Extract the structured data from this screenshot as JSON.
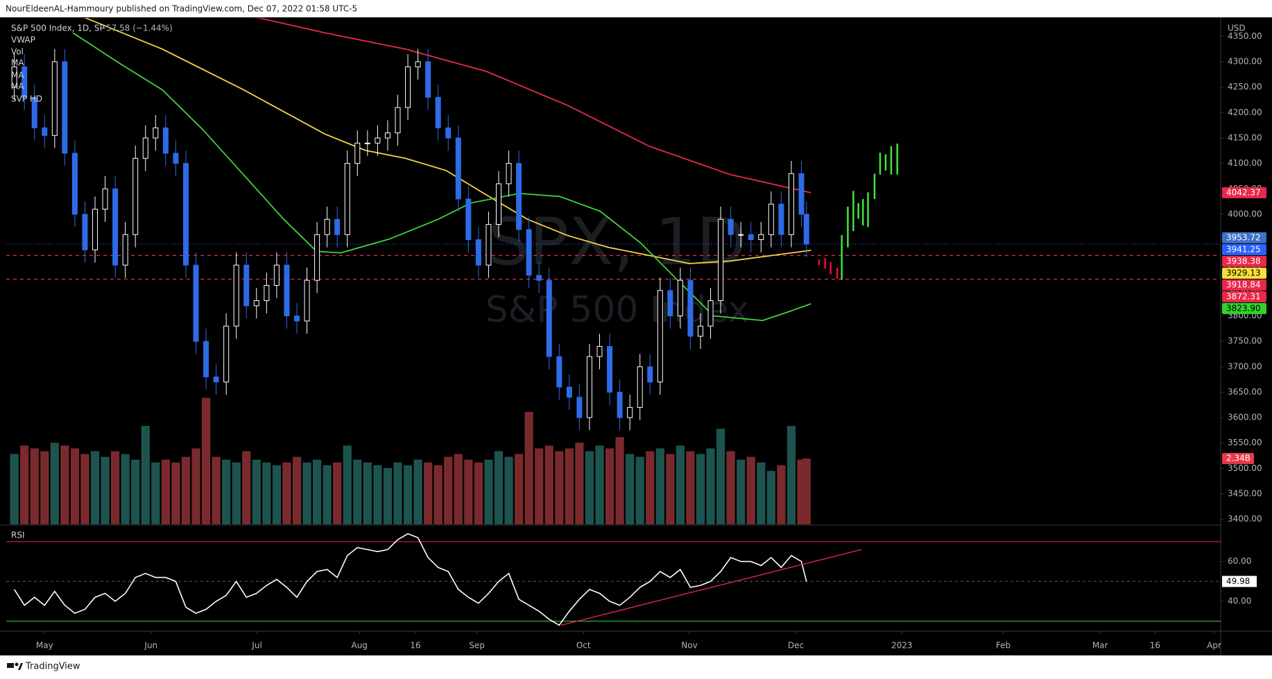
{
  "header": {
    "publisher": "NourEldeenAL-Hammoury published on TradingView.com, Dec 07, 2022 01:58 UTC-5",
    "footer": "TradingView"
  },
  "chart_data": {
    "type": "candlestick",
    "title": "S&P 500 Index, 1D, SP",
    "change": "−57.58 (−1.44%)",
    "change_color": "#2f7bf5",
    "indicators": [
      "VWAP",
      "Vol",
      "MA",
      "MA",
      "MA",
      "SVP HD"
    ],
    "watermark": [
      "SPX, 1D",
      "S&P 500 Index"
    ],
    "currency": "USD",
    "xlim": [
      -7.6,
      233.1
    ],
    "xticks": [
      {
        "value": 0,
        "label": "May"
      },
      {
        "value": 21.1,
        "label": "Jun"
      },
      {
        "value": 42.1,
        "label": "Jul"
      },
      {
        "value": 62.4,
        "label": "Aug"
      },
      {
        "value": 73.5,
        "label": "16"
      },
      {
        "value": 85.7,
        "label": "Sep"
      },
      {
        "value": 106.8,
        "label": "Oct"
      },
      {
        "value": 127.8,
        "label": "Nov"
      },
      {
        "value": 148.9,
        "label": "Dec"
      },
      {
        "value": 169.9,
        "label": "2023"
      },
      {
        "value": 190.0,
        "label": "Feb"
      },
      {
        "value": 209.2,
        "label": "Mar"
      },
      {
        "value": 220.1,
        "label": "16"
      },
      {
        "value": 231.8,
        "label": "Apr"
      }
    ],
    "ylim": [
      3390,
      4386
    ],
    "yticks": [
      {
        "value": 3400,
        "label": "3400.00"
      },
      {
        "value": 3450,
        "label": "3450.00"
      },
      {
        "value": 3500,
        "label": "3500.00"
      },
      {
        "value": 3550,
        "label": "3550.00"
      },
      {
        "value": 3600,
        "label": "3600.00"
      },
      {
        "value": 3650,
        "label": "3650.00"
      },
      {
        "value": 3700,
        "label": "3700.00"
      },
      {
        "value": 3750,
        "label": "3750.00"
      },
      {
        "value": 3800,
        "label": "3800.00"
      },
      {
        "value": 3850,
        "label": "3850.00"
      },
      {
        "value": 3900,
        "label": "3900.00"
      },
      {
        "value": 3950,
        "label": "3950.00"
      },
      {
        "value": 4000,
        "label": "4000.00"
      },
      {
        "value": 4050,
        "label": "4050.00"
      },
      {
        "value": 4100,
        "label": "4100.00"
      },
      {
        "value": 4150,
        "label": "4150.00"
      },
      {
        "value": 4200,
        "label": "4200.00"
      },
      {
        "value": 4250,
        "label": "4250.00"
      },
      {
        "value": 4300,
        "label": "4300.00"
      },
      {
        "value": 4350,
        "label": "4350.00"
      }
    ],
    "candles": {
      "up_color": "#ffffff",
      "down_color": "#2e6be6",
      "x": [
        -6,
        -4,
        -2,
        0,
        2,
        4,
        6,
        8,
        10,
        12,
        14,
        16,
        18,
        20,
        22,
        24,
        26,
        28,
        30,
        32,
        34,
        36,
        38,
        40,
        42,
        44,
        46,
        48,
        50,
        52,
        54,
        56,
        58,
        60,
        62,
        64,
        66,
        68,
        70,
        72,
        74,
        76,
        78,
        80,
        82,
        84,
        86,
        88,
        90,
        92,
        94,
        96,
        98,
        100,
        102,
        104,
        106,
        108,
        110,
        112,
        114,
        116,
        118,
        120,
        122,
        124,
        126,
        128,
        130,
        132,
        134,
        136,
        138,
        140,
        142,
        144,
        146,
        148,
        150,
        151
      ],
      "open": [
        4250,
        4290,
        4230,
        4170,
        4155,
        4300,
        4120,
        4000,
        3930,
        4010,
        4050,
        3900,
        3960,
        4110,
        4150,
        4170,
        4120,
        4100,
        3900,
        3750,
        3680,
        3670,
        3780,
        3900,
        3820,
        3830,
        3860,
        3900,
        3800,
        3790,
        3870,
        3960,
        3990,
        3960,
        4100,
        4140,
        4140,
        4150,
        4160,
        4210,
        4290,
        4300,
        4230,
        4170,
        4150,
        4030,
        3950,
        3900,
        3980,
        4060,
        4100,
        3970,
        3880,
        3870,
        3720,
        3660,
        3640,
        3600,
        3720,
        3740,
        3650,
        3600,
        3620,
        3700,
        3670,
        3850,
        3800,
        3870,
        3760,
        3780,
        3830,
        3990,
        3960,
        3960,
        3950,
        3960,
        4020,
        3960,
        4080,
        4000
      ],
      "high": [
        4315,
        4315,
        4255,
        4195,
        4325,
        4325,
        4145,
        4025,
        4035,
        4075,
        4075,
        3985,
        4135,
        4175,
        4195,
        4195,
        4145,
        4125,
        3925,
        3775,
        3705,
        3805,
        3925,
        3925,
        3855,
        3885,
        3925,
        3925,
        3825,
        3895,
        3985,
        4015,
        4015,
        4125,
        4165,
        4165,
        4175,
        4185,
        4235,
        4315,
        4325,
        4325,
        4255,
        4195,
        4175,
        4055,
        3975,
        4005,
        4085,
        4125,
        4125,
        3995,
        3905,
        3895,
        3745,
        3685,
        3665,
        3745,
        3765,
        3765,
        3675,
        3645,
        3725,
        3725,
        3875,
        3875,
        3895,
        3895,
        3805,
        3855,
        4015,
        4015,
        3985,
        3985,
        3985,
        4045,
        4045,
        4105,
        4105,
        4025
      ],
      "low": [
        4225,
        4205,
        4145,
        4130,
        4130,
        4095,
        3975,
        3905,
        3905,
        3985,
        3875,
        3875,
        3935,
        4085,
        4125,
        4095,
        4075,
        3875,
        3725,
        3655,
        3645,
        3645,
        3755,
        3795,
        3795,
        3805,
        3835,
        3775,
        3765,
        3765,
        3845,
        3935,
        3935,
        3935,
        4075,
        4115,
        4115,
        4125,
        4135,
        4185,
        4265,
        4205,
        4145,
        4125,
        4005,
        3925,
        3875,
        3875,
        3955,
        4035,
        3945,
        3855,
        3845,
        3695,
        3635,
        3615,
        3575,
        3575,
        3695,
        3625,
        3575,
        3575,
        3595,
        3645,
        3645,
        3775,
        3775,
        3735,
        3735,
        3755,
        3805,
        3935,
        3935,
        3925,
        3925,
        3935,
        3935,
        3935,
        3975,
        3916
      ],
      "close": [
        4290,
        4230,
        4170,
        4155,
        4300,
        4120,
        4000,
        3930,
        4010,
        4050,
        3900,
        3960,
        4110,
        4150,
        4170,
        4120,
        4100,
        3900,
        3750,
        3680,
        3670,
        3780,
        3900,
        3820,
        3830,
        3860,
        3900,
        3800,
        3790,
        3870,
        3960,
        3990,
        3960,
        4100,
        4140,
        4140,
        4150,
        4160,
        4210,
        4290,
        4300,
        4230,
        4170,
        4150,
        4030,
        3950,
        3900,
        3980,
        4060,
        4100,
        3970,
        3880,
        3870,
        3720,
        3660,
        3640,
        3600,
        3720,
        3740,
        3650,
        3600,
        3620,
        3700,
        3670,
        3850,
        3800,
        3870,
        3760,
        3780,
        3830,
        3990,
        3960,
        3960,
        3950,
        3960,
        4020,
        3960,
        4080,
        4000,
        3941.25
      ]
    },
    "volume": {
      "up_color": "#1d5450",
      "down_color": "#7a2a2d",
      "ylim": [
        0,
        18
      ],
      "last_label": "2.34B",
      "label_color": "#e8394a",
      "values": [
        2.5,
        2.8,
        2.7,
        2.6,
        2.9,
        2.8,
        2.7,
        2.5,
        2.6,
        2.4,
        2.6,
        2.5,
        2.3,
        3.5,
        2.2,
        2.3,
        2.2,
        2.4,
        2.7,
        4.5,
        2.4,
        2.3,
        2.2,
        2.6,
        2.3,
        2.2,
        2.1,
        2.2,
        2.4,
        2.2,
        2.3,
        2.1,
        2.2,
        2.8,
        2.3,
        2.2,
        2.1,
        2.0,
        2.2,
        2.1,
        2.3,
        2.2,
        2.1,
        2.4,
        2.5,
        2.3,
        2.2,
        2.3,
        2.6,
        2.4,
        2.5,
        4.0,
        2.7,
        2.8,
        2.6,
        2.7,
        2.9,
        2.6,
        2.8,
        2.7,
        3.1,
        2.5,
        2.4,
        2.6,
        2.7,
        2.5,
        2.8,
        2.6,
        2.5,
        2.7,
        3.4,
        2.6,
        2.3,
        2.4,
        2.2,
        1.9,
        2.1,
        3.5,
        2.3,
        2.34
      ]
    },
    "moving_averages": [
      {
        "color": "#e8294a",
        "x": [
          30,
          42.6,
          55.5,
          71.5,
          87.6,
          103.7,
          119.8,
          135.9,
          151.9
        ],
        "values": [
          4400,
          4386,
          4357,
          4325,
          4281,
          4214,
          4134,
          4078,
          4042.37
        ]
      },
      {
        "color": "#f5d447",
        "x": [
          -7.6,
          7.2,
          23.3,
          39.4,
          55.5,
          63.5,
          71.5,
          79.6,
          87.6,
          95.7,
          103.7,
          111.7,
          119.8,
          127.8,
          135.9,
          151.9
        ],
        "values": [
          4420,
          4390,
          4325,
          4245,
          4158,
          4126,
          4110,
          4086,
          4038,
          3990,
          3958,
          3935,
          3919,
          3903,
          3908,
          3929.13
        ]
      },
      {
        "color": "#3ed63a",
        "x": [
          5.6,
          15.3,
          23.3,
          31.4,
          39.4,
          47.4,
          53.9,
          58.7,
          68.3,
          78.0,
          84.4,
          94.1,
          102.1,
          110.1,
          118.2,
          126.2,
          132.6,
          142.3,
          147.1,
          151.9
        ],
        "values": [
          4357,
          4294,
          4245,
          4166,
          4078,
          3990,
          3927,
          3924,
          3951,
          3990,
          4022,
          4041,
          4035,
          4006,
          3943,
          3863,
          3800,
          3791,
          3807,
          3823.9
        ]
      }
    ],
    "projection_down": {
      "color": "#f7093c",
      "x": [
        153.5,
        154.7,
        155.8,
        157.1
      ],
      "low": [
        3900,
        3893,
        3882,
        3873
      ],
      "high": [
        3911,
        3914,
        3906,
        3895
      ]
    },
    "projection_up": {
      "color": "#3ee63a",
      "x": [
        158.0,
        159.2,
        160.3,
        161.3,
        162.2,
        163.2,
        164.5,
        165.6,
        166.7,
        167.8,
        169.0
      ],
      "low": [
        3871,
        3935,
        3967,
        3991,
        3978,
        3975,
        4030,
        4078,
        4086,
        4078,
        4078
      ],
      "high": [
        3959,
        4015,
        4046,
        4022,
        4030,
        4043,
        4080,
        4121,
        4118,
        4134,
        4139
      ]
    },
    "axis_labels": [
      {
        "value": 4042.37,
        "color": "#e8294a"
      },
      {
        "value": 3953.72,
        "color": "#3d72c8"
      },
      {
        "value": 3941.25,
        "color": "#2962ff",
        "line": "dotted"
      },
      {
        "value": 3938.38,
        "color": "#e8294a"
      },
      {
        "value": 3929.13,
        "color": "#f5e03b",
        "text_color": "#000000"
      },
      {
        "value": 3918.84,
        "color": "#e8294a",
        "line": "dashed"
      },
      {
        "value": 3872.31,
        "color": "#e8294a",
        "line": "dashed"
      },
      {
        "value": 3823.9,
        "label": "3823.90",
        "color": "#2ed32a",
        "text_color": "#000000"
      }
    ],
    "rsi": {
      "title": "RSI",
      "color": "#ffffff",
      "ylim": [
        25,
        78
      ],
      "yticks": [
        {
          "value": 40,
          "label": "40.00"
        },
        {
          "value": 60,
          "label": "60.00"
        }
      ],
      "levels": [
        {
          "value": 70,
          "color": "#e8294a"
        },
        {
          "value": 50,
          "color": "#5d606b",
          "dashed": true
        },
        {
          "value": 30,
          "color": "#3ed63a"
        }
      ],
      "trendline": {
        "color": "#e8294a",
        "x": [
          102.4,
          161.9
        ],
        "values": [
          28,
          66
        ]
      },
      "values": [
        46,
        38,
        42,
        38,
        45,
        38,
        34,
        36,
        42,
        44,
        40,
        44,
        52,
        54,
        52,
        52,
        50,
        37,
        34,
        36,
        40,
        43,
        50,
        42,
        44,
        48,
        51,
        47,
        42,
        50,
        55,
        56,
        52,
        63,
        67,
        66,
        65,
        66,
        71,
        74,
        72,
        62,
        57,
        55,
        46,
        42,
        39,
        44,
        50,
        54,
        41,
        38,
        35,
        31,
        28,
        35,
        41,
        46,
        44,
        40,
        38,
        42,
        47,
        50,
        55,
        52,
        56,
        47,
        48,
        50,
        55,
        62,
        60,
        60,
        58,
        62,
        57,
        63,
        60,
        49.98
      ]
    }
  }
}
